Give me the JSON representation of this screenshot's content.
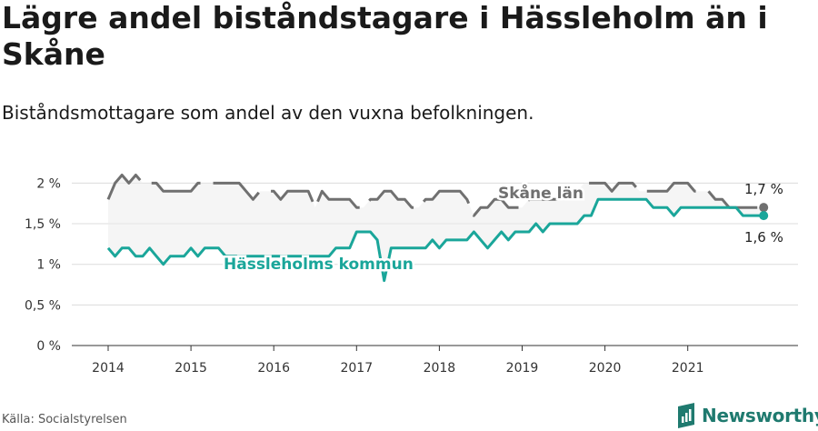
{
  "header": {
    "title": "Lägre andel biståndstagare i Hässleholm än i Skåne",
    "subtitle": "Biståndsmottagare som andel av den vuxna befolkningen."
  },
  "footer": {
    "source": "Källa: Socialstyrelsen",
    "brand": "Newsworthy"
  },
  "colors": {
    "skane": "#707070",
    "hassleholm": "#1aa69a",
    "band": "#ececec",
    "brand": "#1f7a6f"
  },
  "chart_data": {
    "type": "line",
    "x_start": "2014-01",
    "x_ticks": [
      "2014",
      "2015",
      "2016",
      "2017",
      "2018",
      "2019",
      "2020",
      "2021"
    ],
    "y_ticks": [
      "0 %",
      "0,5 %",
      "1 %",
      "1,5 %",
      "2 %"
    ],
    "y_tick_values": [
      0,
      0.5,
      1,
      1.5,
      2
    ],
    "ylim": [
      0,
      2.15
    ],
    "grid": true,
    "series": [
      {
        "name": "Skåne län",
        "style": "dashed",
        "end_label": "1,7 %",
        "values": [
          1.8,
          2.0,
          2.1,
          2.0,
          2.1,
          2.0,
          2.0,
          2.0,
          1.9,
          1.9,
          1.9,
          1.9,
          1.9,
          2.0,
          2.0,
          2.0,
          2.0,
          2.0,
          2.0,
          2.0,
          1.9,
          1.8,
          1.9,
          1.9,
          1.9,
          1.8,
          1.9,
          1.9,
          1.9,
          1.9,
          1.7,
          1.9,
          1.8,
          1.8,
          1.8,
          1.8,
          1.7,
          1.7,
          1.8,
          1.8,
          1.9,
          1.9,
          1.8,
          1.8,
          1.7,
          1.7,
          1.8,
          1.8,
          1.9,
          1.9,
          1.9,
          1.9,
          1.8,
          1.6,
          1.7,
          1.7,
          1.8,
          1.8,
          1.7,
          1.7,
          1.7,
          1.8,
          1.8,
          1.8,
          1.8,
          1.8,
          1.9,
          1.9,
          1.9,
          2.0,
          2.0,
          2.0,
          2.0,
          1.9,
          2.0,
          2.0,
          2.0,
          1.9,
          1.9,
          1.9,
          1.9,
          1.9,
          2.0,
          2.0,
          2.0,
          1.9,
          1.9,
          1.9,
          1.8,
          1.8,
          1.7,
          1.7,
          1.7,
          1.7,
          1.7,
          1.7
        ]
      },
      {
        "name": "Hässleholms kommun",
        "style": "solid",
        "end_label": "1,6 %",
        "values": [
          1.2,
          1.1,
          1.2,
          1.2,
          1.1,
          1.1,
          1.2,
          1.1,
          1.0,
          1.1,
          1.1,
          1.1,
          1.2,
          1.1,
          1.2,
          1.2,
          1.2,
          1.1,
          1.1,
          1.1,
          1.1,
          1.1,
          1.1,
          1.1,
          1.1,
          1.1,
          1.1,
          1.1,
          1.1,
          1.1,
          1.1,
          1.1,
          1.1,
          1.2,
          1.2,
          1.2,
          1.4,
          1.4,
          1.4,
          1.3,
          0.8,
          1.2,
          1.2,
          1.2,
          1.2,
          1.2,
          1.2,
          1.3,
          1.2,
          1.3,
          1.3,
          1.3,
          1.3,
          1.4,
          1.3,
          1.2,
          1.3,
          1.4,
          1.3,
          1.4,
          1.4,
          1.4,
          1.5,
          1.4,
          1.5,
          1.5,
          1.5,
          1.5,
          1.5,
          1.6,
          1.6,
          1.8,
          1.8,
          1.8,
          1.8,
          1.8,
          1.8,
          1.8,
          1.8,
          1.7,
          1.7,
          1.7,
          1.6,
          1.7,
          1.7,
          1.7,
          1.7,
          1.7,
          1.7,
          1.7,
          1.7,
          1.7,
          1.6,
          1.6,
          1.6,
          1.6
        ]
      }
    ]
  }
}
